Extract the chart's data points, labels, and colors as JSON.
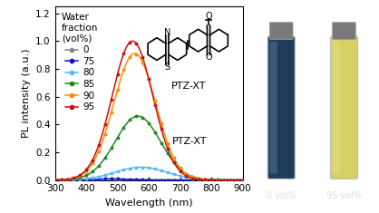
{
  "xlabel": "Wavelength (nm)",
  "ylabel": "PL intensity (a.u.)",
  "xlim": [
    300,
    900
  ],
  "ylim": [
    0,
    1.25
  ],
  "yticks": [
    0,
    0.2,
    0.4,
    0.6,
    0.8,
    1.0,
    1.2
  ],
  "xticks": [
    300,
    400,
    500,
    600,
    700,
    800,
    900
  ],
  "series": [
    {
      "label": "0",
      "color": "#888888",
      "peak": 470,
      "amplitude": 0.008,
      "sigma": 55
    },
    {
      "label": "75",
      "color": "#1111cc",
      "peak": 480,
      "amplitude": 0.008,
      "sigma": 55
    },
    {
      "label": "80",
      "color": "#55bbff",
      "peak": 575,
      "amplitude": 0.092,
      "sigma": 82
    },
    {
      "label": "85",
      "color": "#228822",
      "peak": 565,
      "amplitude": 0.46,
      "sigma": 72
    },
    {
      "label": "90",
      "color": "#ff8c00",
      "peak": 555,
      "amplitude": 0.91,
      "sigma": 67
    },
    {
      "label": "95",
      "color": "#cc1111",
      "peak": 548,
      "amplitude": 1.0,
      "sigma": 65
    }
  ],
  "legend_title": "Water\nfraction\n(vol%)",
  "photo_bg": "#0a0a0a",
  "photo_labels": [
    "0 vol%",
    "95 vol%"
  ],
  "vial_left_color": "#1e3d5c",
  "vial_right_color": "#d8d060",
  "vial_left_glow": "#2a5f8f",
  "vial_right_glow": "#f0e870",
  "cap_color": "#7a7a7a",
  "label_color": "#dddddd"
}
